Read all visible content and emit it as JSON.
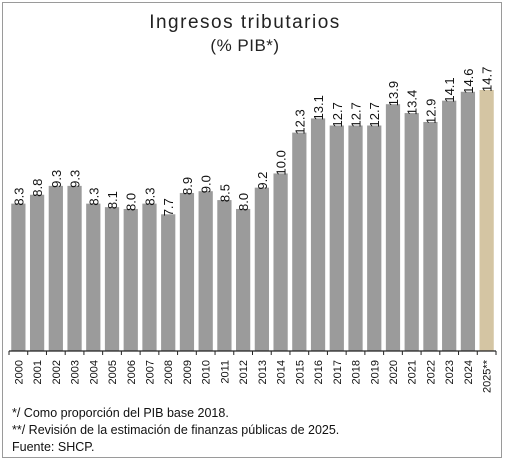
{
  "chart_data": {
    "type": "bar",
    "title": "Ingresos tributarios",
    "subtitle": "(% PIB*)",
    "xlabel": "",
    "ylabel": "",
    "ylim": [
      0,
      16.5
    ],
    "grid": false,
    "categories": [
      "2000",
      "2001",
      "2002",
      "2003",
      "2004",
      "2005",
      "2006",
      "2007",
      "2008",
      "2009",
      "2010",
      "2011",
      "2012",
      "2013",
      "2014",
      "2015",
      "2016",
      "2017",
      "2018",
      "2019",
      "2020",
      "2021",
      "2022",
      "2023",
      "2024",
      "2025**"
    ],
    "values": [
      8.3,
      8.8,
      9.3,
      9.3,
      8.3,
      8.1,
      8.0,
      8.3,
      7.7,
      8.9,
      9.0,
      8.5,
      8.0,
      9.2,
      10.0,
      12.3,
      13.1,
      12.7,
      12.7,
      12.7,
      13.9,
      13.4,
      12.9,
      14.1,
      14.6,
      14.7
    ],
    "value_labels": [
      "8.3",
      "8.8",
      "9.3",
      "9.3",
      "8.3",
      "8.1",
      "8.0",
      "8.3",
      "7.7",
      "8.9",
      "9.0",
      "8.5",
      "8.0",
      "9.2",
      "10.0",
      "12.3",
      "13.1",
      "12.7",
      "12.7",
      "12.7",
      "13.9",
      "13.4",
      "12.9",
      "14.1",
      "14.6",
      "14.7"
    ],
    "colors": {
      "bar": "#9b9b9b",
      "highlight": "#d4c5a3",
      "axis": "#222222"
    },
    "highlight_index": 25
  },
  "notes": [
    "*/ Como proporción del PIB base 2018.",
    "**/ Revisión de la estimación de finanzas públicas de 2025.",
    "Fuente: SHCP."
  ]
}
